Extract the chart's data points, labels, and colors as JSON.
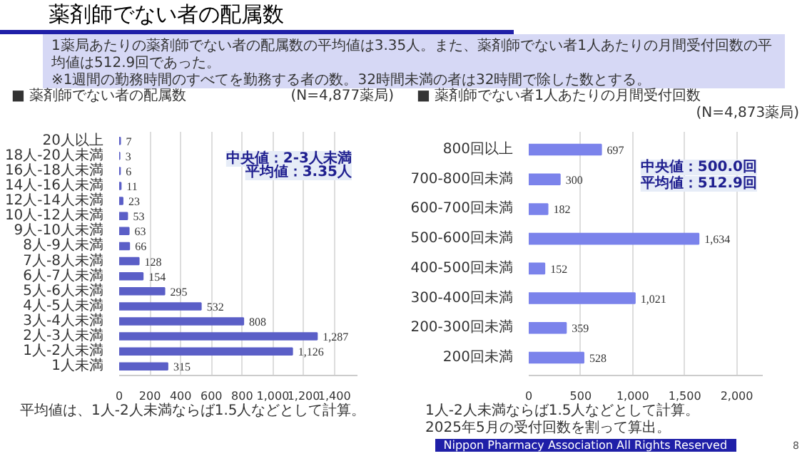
{
  "chart_data": [
    {
      "type": "other",
      "title": "薬剤師でない者の配属数",
      "annotations": [
        "1薬局あたりの薬剤師でない者の配属数の平均値は3.35人。また、薬剤師でない者1人あたりの月間受付回数の平均値は512.9回であった。",
        "※1週間の勤務時間のすべてを勤務する者の数。32時間未満の者は32時間で除した数とする。"
      ]
    },
    {
      "type": "bar",
      "orientation": "horizontal",
      "title": "■ 薬剤師でない者の配属数",
      "color": "#5b5fc7",
      "grid": "x",
      "categories": [
        "20人以上",
        "18人-20人未満",
        "16人-18人未満",
        "14人-16人未満",
        "12人-14人未満",
        "10人-12人未満",
        "9人-10人未満",
        "8人-9人未満",
        "7人-8人未満",
        "6人-7人未満",
        "5人-6人未満",
        "4人-5人未満",
        "3人-4人未満",
        "2人-3人未満",
        "1人-2人未満",
        "1人未満"
      ],
      "values": [
        7,
        3,
        6,
        11,
        23,
        53,
        63,
        66,
        128,
        154,
        295,
        532,
        808,
        1287,
        1126,
        315
      ],
      "value_labels": [
        "7",
        "3",
        "6",
        "11",
        "23",
        "53",
        "63",
        "66",
        "128",
        "154",
        "295",
        "532",
        "808",
        "1,287",
        "1,126",
        "315"
      ],
      "xlim": [
        0,
        1550
      ],
      "xticks": [
        0,
        200,
        400,
        600,
        800,
        {
          "value": 1000,
          "label": "1,000"
        },
        {
          "value": 1200,
          "label": "1,200"
        },
        {
          "value": 1400,
          "label": "1,400"
        }
      ],
      "annotations": [
        "(N=4,877薬局)",
        "中央値：2-3人未満",
        "平均値：3.35人",
        "平均値は、1人-2人未満ならば1.5人などとして計算。"
      ]
    },
    {
      "type": "bar",
      "orientation": "horizontal",
      "title": "■ 薬剤師でない者1人あたりの月間受付回数",
      "color": "#7b83eb",
      "grid": "x",
      "categories": [
        "800回以上",
        "700-800回未満",
        "600-700回未満",
        "500-600回未満",
        "400-500回未満",
        "300-400回未満",
        "200-300回未満",
        "200回未満"
      ],
      "values": [
        697,
        300,
        182,
        1634,
        152,
        1021,
        359,
        528
      ],
      "value_labels": [
        "697",
        "300",
        "182",
        "1,634",
        "152",
        "1,021",
        "359",
        "528"
      ],
      "xlim": [
        0,
        2250
      ],
      "xticks": [
        0,
        500,
        {
          "value": 1000,
          "label": "1,000"
        },
        {
          "value": 1500,
          "label": "1,500"
        },
        {
          "value": 2000,
          "label": "2,000"
        }
      ],
      "annotations": [
        "(N=4,873薬局)",
        "中央値：500.0回",
        "平均値：512.9回",
        "1人-2人未満ならば1.5人などとして計算。",
        "2025年5月の受付回数を割って算出。"
      ]
    },
    {
      "type": "other",
      "annotations": [
        "Nippon Pharmacy Association All Rights Reserved",
        "8"
      ]
    }
  ]
}
